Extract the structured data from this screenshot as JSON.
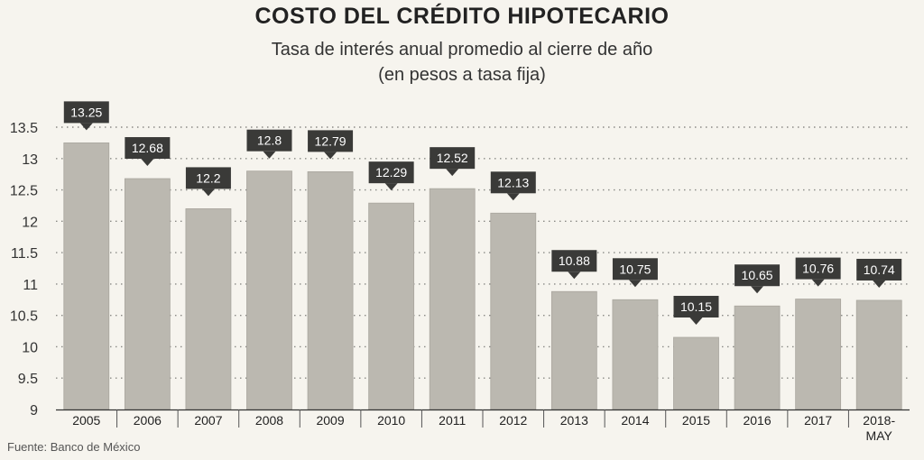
{
  "title": "COSTO DEL CRÉDITO HIPOTECARIO",
  "subtitle_line1": "Tasa de interés anual promedio al cierre de año",
  "subtitle_line2": "(en pesos a tasa fija)",
  "source": "Fuente: Banco de México",
  "colors": {
    "bar": "#bbb8b0",
    "bar_edge": "#a9a69e",
    "label_box": "#3a3a38",
    "grid": "#8a8a86",
    "background": "#f6f4ee"
  },
  "chart_data": {
    "type": "bar",
    "categories": [
      "2005",
      "2006",
      "2007",
      "2008",
      "2009",
      "2010",
      "2011",
      "2012",
      "2013",
      "2014",
      "2015",
      "2016",
      "2017",
      "2018-\nMAY"
    ],
    "values": [
      13.25,
      12.68,
      12.2,
      12.8,
      12.79,
      12.29,
      12.52,
      12.13,
      10.88,
      10.75,
      10.15,
      10.65,
      10.76,
      10.74
    ],
    "title": "COSTO DEL CRÉDITO HIPOTECARIO",
    "subtitle": "Tasa de interés anual promedio al cierre de año (en pesos a tasa fija)",
    "xlabel": "",
    "ylabel": "",
    "ylim": [
      9,
      13.5
    ],
    "yticks": [
      9,
      9.5,
      10,
      10.5,
      11,
      11.5,
      12,
      12.5,
      13,
      13.5
    ],
    "ytick_labels": [
      "9",
      "9.5",
      "10",
      "10.5",
      "11",
      "11.5",
      "12",
      "12.5",
      "13",
      "13.5"
    ],
    "grid": "horizontal dotted",
    "legend": "none",
    "data_labels": [
      "13.25",
      "12.68",
      "12.2",
      "12.8",
      "12.79",
      "12.29",
      "12.52",
      "12.13",
      "10.88",
      "10.75",
      "10.15",
      "10.65",
      "10.76",
      "10.74"
    ]
  }
}
